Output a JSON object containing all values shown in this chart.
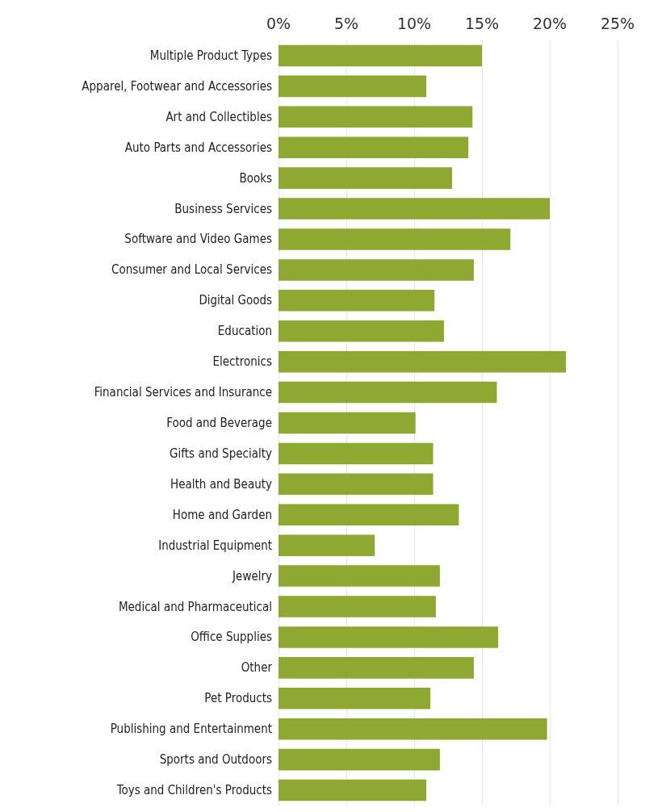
{
  "chart_data": {
    "type": "bar",
    "orientation": "horizontal",
    "categories": [
      "Multiple Product Types",
      "Apparel, Footwear and Accessories",
      "Art and Collectibles",
      "Auto Parts and Accessories",
      "Books",
      "Business Services",
      "Software and Video Games",
      "Consumer and Local Services",
      "Digital Goods",
      "Education",
      "Electronics",
      "Financial Services and Insurance",
      "Food and Beverage",
      "Gifts and Specialty",
      "Health and Beauty",
      "Home and Garden",
      "Industrial Equipment",
      "Jewelry",
      "Medical and Pharmaceutical",
      "Office Supplies",
      "Other",
      "Pet Products",
      "Publishing and Entertainment",
      "Sports and Outdoors",
      "Toys and Children's Products"
    ],
    "series": [
      {
        "color": "#8ea832",
        "values": [
          15.0,
          10.9,
          14.3,
          14.0,
          12.8,
          20.0,
          17.1,
          14.4,
          11.5,
          12.2,
          21.2,
          16.1,
          10.1,
          11.4,
          11.4,
          13.3,
          7.1,
          11.9,
          11.6,
          16.2,
          14.4,
          11.2,
          19.8,
          11.9,
          10.9
        ]
      }
    ],
    "xlim": [
      0,
      25
    ],
    "xticks": [
      {
        "value": 0,
        "label": "0%"
      },
      {
        "value": 5,
        "label": "5%"
      },
      {
        "value": 10,
        "label": "10%"
      },
      {
        "value": 15,
        "label": "15%"
      },
      {
        "value": 20,
        "label": "20%"
      },
      {
        "value": 25,
        "label": "25%"
      }
    ],
    "grid": "x"
  }
}
